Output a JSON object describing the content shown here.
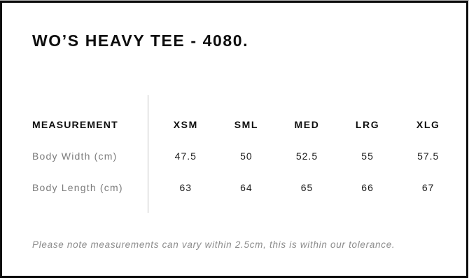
{
  "page": {
    "title": "WO’S HEAVY TEE - 4080.",
    "footer_note": "Please note measurements can vary within 2.5cm, this is within our tolerance."
  },
  "size_chart": {
    "columns": [
      "MEASUREMENT",
      "XSM",
      "SML",
      "MED",
      "LRG",
      "XLG"
    ],
    "rows": [
      {
        "label": "Body Width (cm)",
        "values": [
          "47.5",
          "50",
          "52.5",
          "55",
          "57.5"
        ]
      },
      {
        "label": "Body Length (cm)",
        "values": [
          "63",
          "64",
          "65",
          "66",
          "67"
        ]
      }
    ]
  },
  "colors": {
    "card_border": "#0d0d0d",
    "title_text": "#0d0d0d",
    "header_text": "#0e0e0e",
    "row_label_text": "#7c7c7c",
    "value_text": "#1b1b1b",
    "divider_line": "#c2c2c2",
    "footer_text": "#8c8c8c",
    "background": "#ffffff"
  }
}
